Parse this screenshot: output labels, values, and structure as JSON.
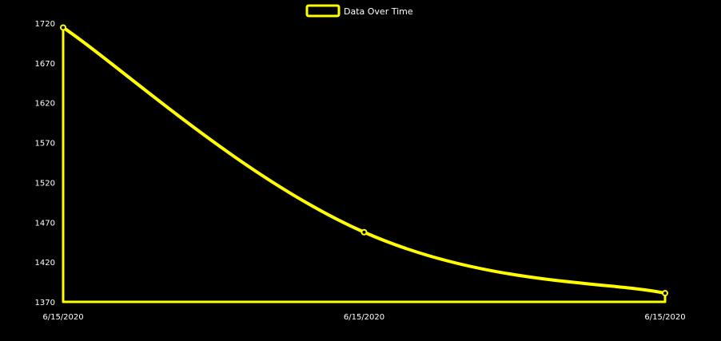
{
  "chart_data": {
    "type": "area",
    "title": "",
    "xlabel": "",
    "ylabel": "",
    "legend": {
      "placement": "top-center",
      "entries": [
        {
          "name": "Data Over Time"
        }
      ]
    },
    "x": [
      "6/15/2020",
      "6/15/2020",
      "6/15/2020"
    ],
    "series": [
      {
        "name": "Data Over Time",
        "values": [
          1715,
          1480,
          1410
        ],
        "color": "#ffff00"
      }
    ],
    "ylim": [
      1400,
      1720
    ],
    "yticks": [
      "1720",
      "1670",
      "1620",
      "1570",
      "1520",
      "1470",
      "1420",
      "1370"
    ],
    "grid": false,
    "fill": "origin",
    "colors": {
      "background": "#000000",
      "line": "#ffff00",
      "text": "#ffffff"
    }
  }
}
